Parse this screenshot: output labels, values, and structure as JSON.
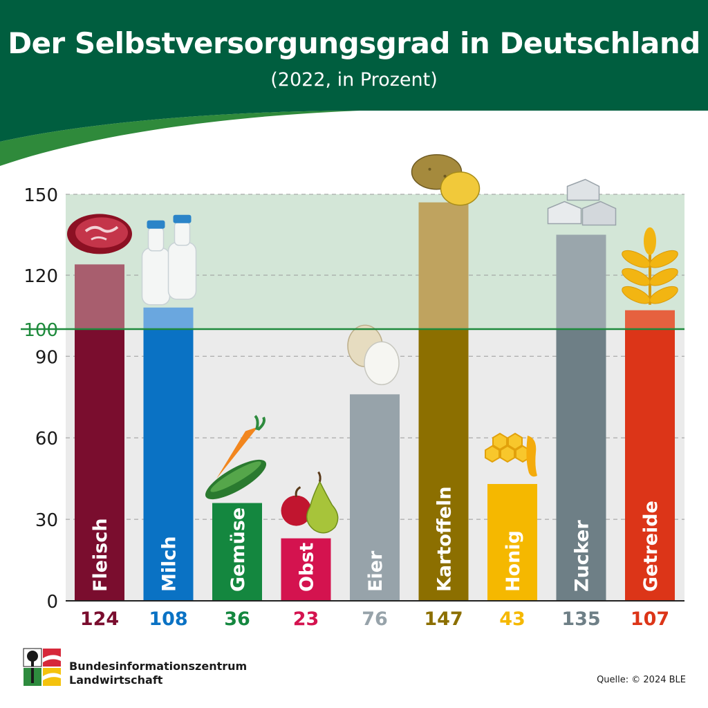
{
  "header": {
    "title": "Der Selbstversorgungsgrad in Deutschland",
    "subtitle": "(2022, in Prozent)",
    "background_color": "#005e3f"
  },
  "footer": {
    "org_line1": "Bundesinformationszentrum",
    "org_line2": "Landwirtschaft",
    "source": "Quelle: © 2024 BLE"
  },
  "chart_data": {
    "type": "bar",
    "title": "Der Selbstversorgungsgrad in Deutschland",
    "subtitle": "(2022, in Prozent)",
    "categories": [
      "Fleisch",
      "Milch",
      "Gemüse",
      "Obst",
      "Eier",
      "Kartoffeln",
      "Honig",
      "Zucker",
      "Getreide"
    ],
    "values": [
      124,
      108,
      36,
      23,
      76,
      147,
      43,
      135,
      107
    ],
    "value_labels": [
      "124",
      "108",
      "36",
      "23",
      "76",
      "147",
      "43",
      "135",
      "107"
    ],
    "colors": [
      "#7a0d2e",
      "#0a72c4",
      "#14873f",
      "#d4134f",
      "#97a3aa",
      "#8c6f00",
      "#f5b800",
      "#6e7f86",
      "#dc3518"
    ],
    "colors_above_100": [
      "#a85e6e",
      "#6aa7df",
      "#14873f",
      "#d4134f",
      "#97a3aa",
      "#bfa35f",
      "#f5b800",
      "#9aa6ac",
      "#e6613f"
    ],
    "label_colors": [
      "#7a0d2e",
      "#0a72c4",
      "#14873f",
      "#d4134f",
      "#97a3aa",
      "#8c6f00",
      "#f5b800",
      "#6e7f86",
      "#dc3518"
    ],
    "icons": [
      "meat-icon",
      "milk-bottles-icon",
      "carrot-cucumber-icon",
      "apple-pear-icon",
      "eggs-icon",
      "potatoes-icon",
      "honeycomb-icon",
      "sugar-cubes-icon",
      "wheat-icon"
    ],
    "yticks": [
      "0",
      "30",
      "60",
      "90",
      "100",
      "120",
      "150"
    ],
    "ytick_values": [
      0,
      30,
      60,
      90,
      100,
      120,
      150
    ],
    "ylim": [
      0,
      150
    ],
    "reference_line": 100,
    "reference_color": "#1e8a3c",
    "grid": true,
    "xlabel": "",
    "ylabel": ""
  }
}
